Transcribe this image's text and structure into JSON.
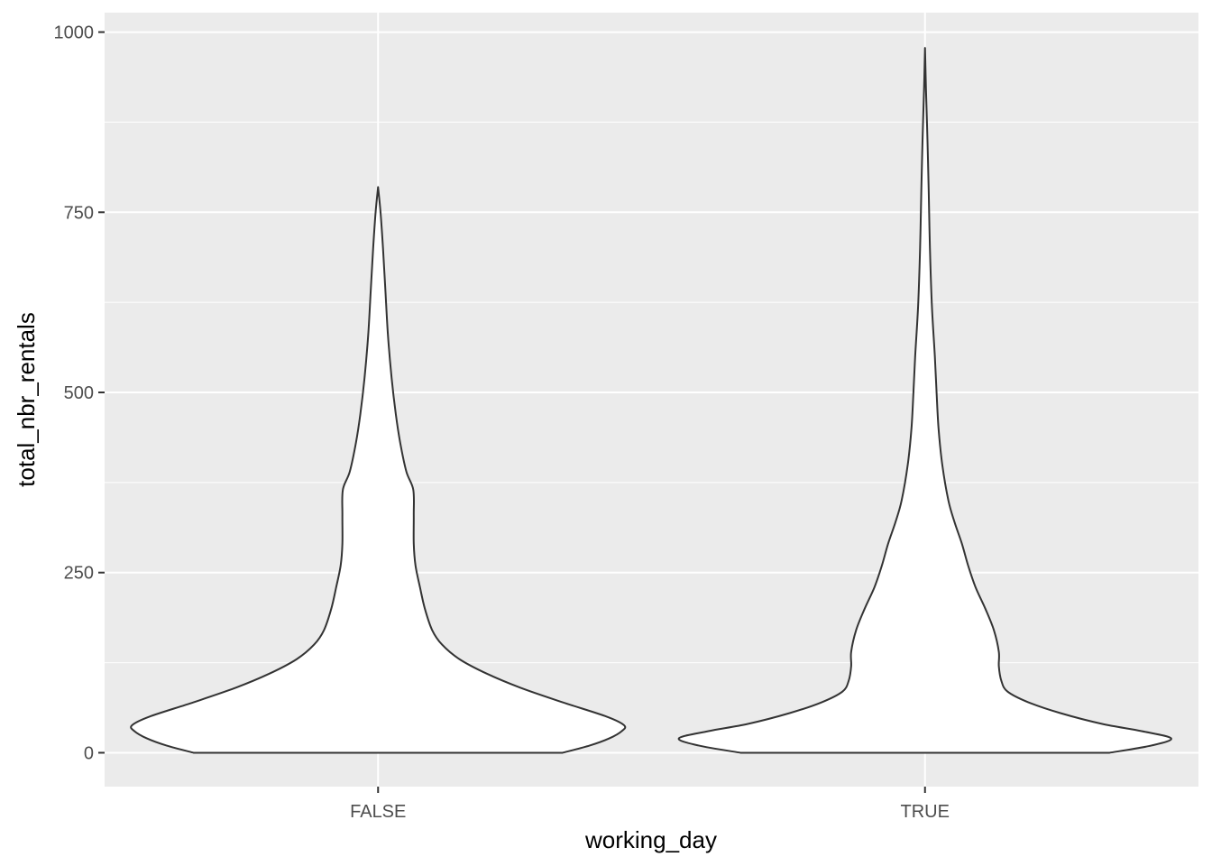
{
  "chart_data": {
    "type": "violin",
    "xlabel": "working_day",
    "ylabel": "total_nbr_rentals",
    "categories": [
      "FALSE",
      "TRUE"
    ],
    "ylim": [
      -47,
      1027
    ],
    "yticks": [
      0,
      250,
      500,
      750,
      1000
    ],
    "ytick_labels": [
      "0",
      "250",
      "500",
      "750",
      "1000"
    ],
    "grid": true,
    "legend": "none",
    "colors": {
      "panel_background": "#ebebeb",
      "gridline": "#ffffff",
      "violin_fill": "#ffffff",
      "violin_outline": "#333333",
      "tick_text": "#4d4d4d",
      "tick_mark": "#333333"
    },
    "series": [
      {
        "category": "FALSE",
        "min": 0,
        "max": 785,
        "profile": [
          [
            0,
            0.75
          ],
          [
            10,
            0.86
          ],
          [
            20,
            0.94
          ],
          [
            30,
            0.99
          ],
          [
            38,
            1.0
          ],
          [
            50,
            0.93
          ],
          [
            70,
            0.75
          ],
          [
            90,
            0.58
          ],
          [
            110,
            0.44
          ],
          [
            130,
            0.33
          ],
          [
            150,
            0.26
          ],
          [
            170,
            0.22
          ],
          [
            200,
            0.19
          ],
          [
            230,
            0.17
          ],
          [
            260,
            0.152
          ],
          [
            290,
            0.145
          ],
          [
            330,
            0.145
          ],
          [
            365,
            0.143
          ],
          [
            390,
            0.115
          ],
          [
            430,
            0.09
          ],
          [
            470,
            0.072
          ],
          [
            520,
            0.055
          ],
          [
            580,
            0.04
          ],
          [
            640,
            0.03
          ],
          [
            700,
            0.02
          ],
          [
            750,
            0.01
          ],
          [
            785,
            0.0
          ]
        ]
      },
      {
        "category": "TRUE",
        "min": 0,
        "max": 978,
        "profile": [
          [
            0,
            0.75
          ],
          [
            10,
            0.92
          ],
          [
            20,
            1.0
          ],
          [
            30,
            0.88
          ],
          [
            40,
            0.72
          ],
          [
            55,
            0.55
          ],
          [
            70,
            0.42
          ],
          [
            85,
            0.335
          ],
          [
            100,
            0.31
          ],
          [
            120,
            0.3
          ],
          [
            140,
            0.3
          ],
          [
            170,
            0.28
          ],
          [
            200,
            0.245
          ],
          [
            230,
            0.205
          ],
          [
            260,
            0.175
          ],
          [
            290,
            0.15
          ],
          [
            320,
            0.12
          ],
          [
            350,
            0.095
          ],
          [
            400,
            0.07
          ],
          [
            450,
            0.055
          ],
          [
            500,
            0.047
          ],
          [
            550,
            0.04
          ],
          [
            620,
            0.028
          ],
          [
            700,
            0.02
          ],
          [
            780,
            0.015
          ],
          [
            850,
            0.01
          ],
          [
            920,
            0.004
          ],
          [
            978,
            0.0
          ]
        ]
      }
    ]
  }
}
